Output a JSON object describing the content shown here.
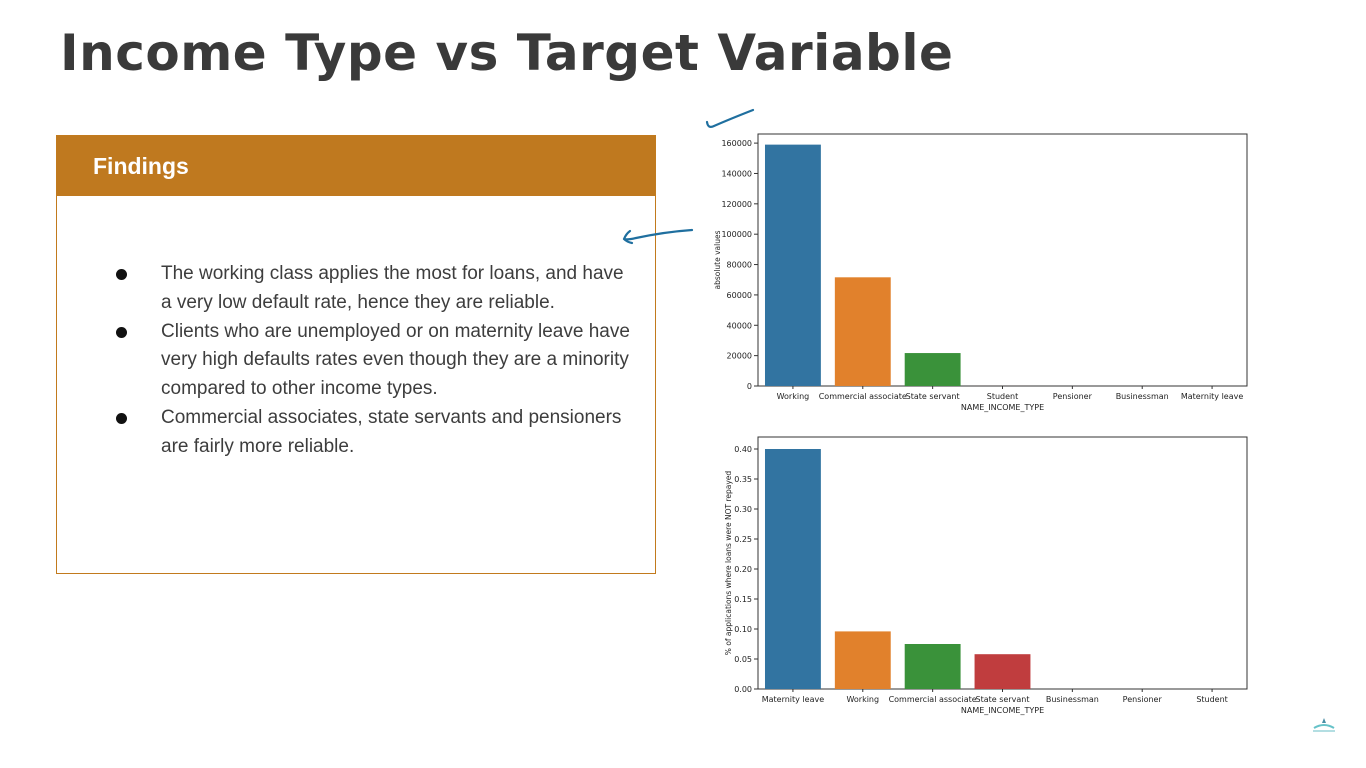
{
  "slide": {
    "title": "Income Type vs Target Variable"
  },
  "findings": {
    "header": "Findings",
    "items": [
      "The working class applies the most for loans, and have a very low default rate, hence they are reliable.",
      "Clients who are unemployed or on maternity leave have very high defaults rates even though they are a minority compared to other income types.",
      "Commercial associates, state servants and pensioners are fairly more reliable."
    ]
  },
  "chart_data": [
    {
      "type": "bar",
      "categories": [
        "Working",
        "Commercial associate",
        "State servant",
        "Student",
        "Pensioner",
        "Businessman",
        "Maternity leave"
      ],
      "values": [
        159000,
        71600,
        21700,
        10,
        5,
        5,
        2
      ],
      "xlabel": "NAME_INCOME_TYPE",
      "ylabel": "absolute values",
      "ylim": [
        0,
        166000
      ],
      "yticks": [
        0,
        20000,
        40000,
        60000,
        80000,
        100000,
        120000,
        140000,
        160000
      ],
      "ytick_labels": [
        "0",
        "20000",
        "40000",
        "60000",
        "80000",
        "100000",
        "120000",
        "140000",
        "160000"
      ],
      "colors": [
        "#3274a1",
        "#e1812c",
        "#3a923a",
        "#c03d3e",
        "#9372b2",
        "#845b53",
        "#d684bd"
      ],
      "grid": false
    },
    {
      "type": "bar",
      "categories": [
        "Maternity leave",
        "Working",
        "Commercial associate",
        "State servant",
        "Businessman",
        "Pensioner",
        "Student"
      ],
      "values": [
        0.4,
        0.096,
        0.075,
        0.058,
        0.0,
        0.0,
        0.0
      ],
      "xlabel": "NAME_INCOME_TYPE",
      "ylabel": "% of applications where loans were NOT repayed",
      "ylim": [
        0,
        0.42
      ],
      "yticks": [
        0,
        0.05,
        0.1,
        0.15,
        0.2,
        0.25,
        0.3,
        0.35,
        0.4
      ],
      "ytick_labels": [
        "0.00",
        "0.05",
        "0.10",
        "0.15",
        "0.20",
        "0.25",
        "0.30",
        "0.35",
        "0.40"
      ],
      "colors": [
        "#3274a1",
        "#e1812c",
        "#3a923a",
        "#c03d3e",
        "#9372b2",
        "#845b53",
        "#d684bd"
      ],
      "grid": false
    }
  ],
  "annotation_colors": {
    "pen": "#1f6f9f",
    "accent": "#bf791f"
  }
}
